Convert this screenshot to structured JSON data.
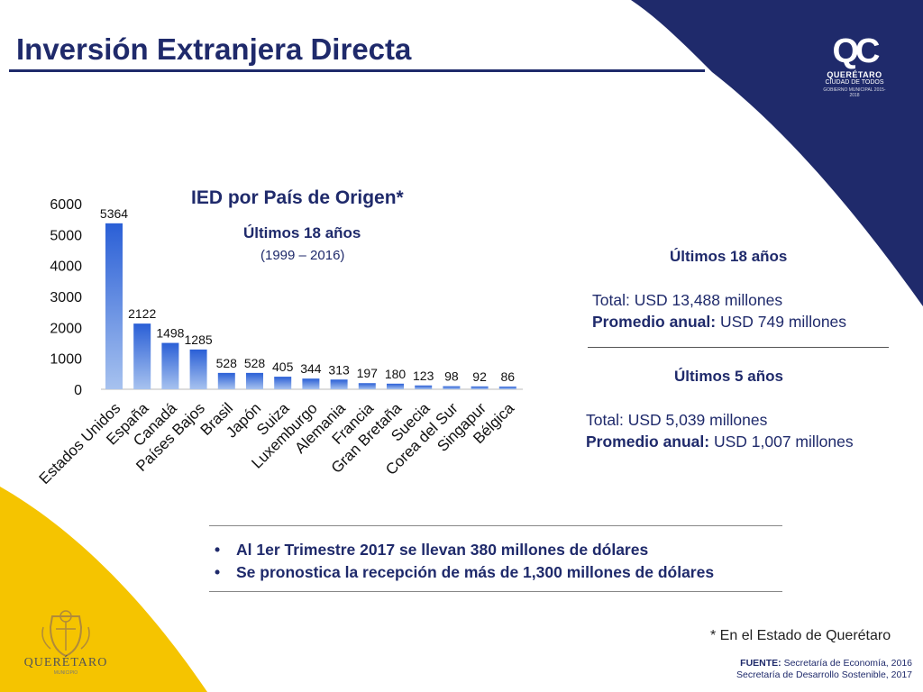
{
  "header": {
    "title": "Inversión Extranjera Directa"
  },
  "brand": {
    "mark": "QC",
    "name": "QUERÉTARO",
    "tagline": "CIUDAD DE TODOS",
    "small_text": "GOBIERNO MUNICIPAL 2015-2018"
  },
  "colors": {
    "navy": "#1f2a6b",
    "bar_top": "#2a5fd6",
    "bar_bottom": "#a7c2ef",
    "yellow": "#f5c400"
  },
  "chart_data": {
    "type": "bar",
    "title": "IED por País de Origen*",
    "subtitle": "Últimos 18 años",
    "subtitle_range": "(1999 – 2016)",
    "categories": [
      "Estados Unidos",
      "España",
      "Canadá",
      "Países Bajos",
      "Brasil",
      "Japón",
      "Suiza",
      "Luxemburgo",
      "Alemania",
      "Francia",
      "Gran Bretaña",
      "Suecia",
      "Corea del Sur",
      "Singapur",
      "Bélgica"
    ],
    "values": [
      5364,
      2122,
      1498,
      1285,
      528,
      528,
      405,
      344,
      313,
      197,
      180,
      123,
      98,
      92,
      86
    ],
    "yticks": [
      0,
      1000,
      2000,
      3000,
      4000,
      5000,
      6000
    ],
    "ylim": [
      0,
      6000
    ],
    "grid": false,
    "legend": "none"
  },
  "summary": {
    "period1": {
      "heading": "Últimos 18 años",
      "total": "Total: USD 13,488 millones",
      "avg_label": "Promedio anual:",
      "avg_value": " USD 749 millones"
    },
    "period2": {
      "heading": "Últimos 5 años",
      "total": "Total: USD 5,039 millones",
      "avg_label": "Promedio anual:",
      "avg_value": " USD 1,007 millones"
    }
  },
  "bullets": [
    "Al 1er Trimestre 2017 se llevan 380 millones de dólares",
    "Se pronostica la recepción de más de 1,300 millones de dólares"
  ],
  "footnote": "* En el Estado de Querétaro",
  "source": {
    "label": "FUENTE:",
    "line1": " Secretaría de Economía, 2016",
    "line2": "Secretaría de Desarrollo Sostenible, 2017"
  },
  "crest": {
    "word": "QUERÉTARO",
    "sub": "MUNICIPIO"
  }
}
